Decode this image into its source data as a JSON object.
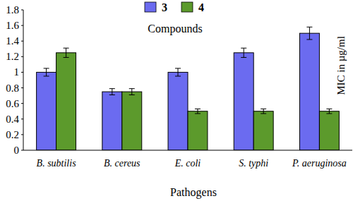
{
  "chart_data": {
    "type": "bar",
    "legend_title": "Compounds",
    "x_label": "Pathogens",
    "y_label": "MIC in µg/ml",
    "categories": [
      "B. subtilis",
      "B. cereus",
      "E. coli",
      "S. typhi",
      "P. aeruginosa"
    ],
    "series": [
      {
        "name": "3",
        "color": "#6b6bf0",
        "values": [
          1.0,
          0.75,
          1.0,
          1.25,
          1.5
        ],
        "errors": [
          0.05,
          0.04,
          0.05,
          0.06,
          0.08
        ]
      },
      {
        "name": "4",
        "color": "#5c9a2c",
        "values": [
          1.25,
          0.75,
          0.5,
          0.5,
          0.5
        ],
        "errors": [
          0.06,
          0.04,
          0.03,
          0.03,
          0.03
        ]
      }
    ],
    "ylim": [
      0,
      1.8
    ],
    "yticks": [
      0,
      0.2,
      0.4,
      0.6,
      0.8,
      1,
      1.2,
      1.4,
      1.6,
      1.8
    ],
    "grid": false,
    "legend": "top"
  }
}
